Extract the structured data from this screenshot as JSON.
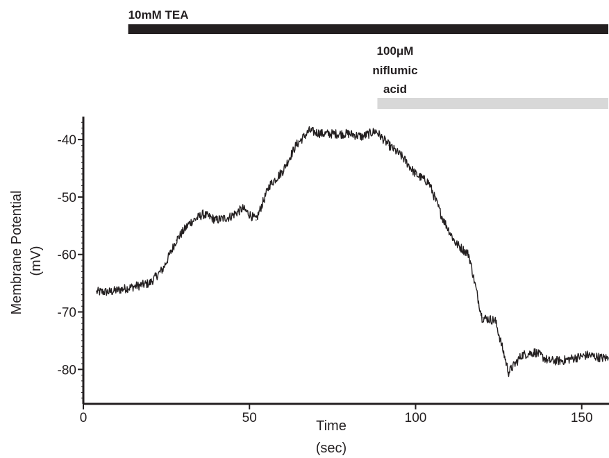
{
  "chart_data": {
    "type": "line",
    "title": "",
    "xlabel": "Time",
    "xlabel_unit": "(sec)",
    "ylabel": "Membrane Potential",
    "ylabel_unit": "(mV)",
    "xlim": [
      0,
      158
    ],
    "ylim": [
      -86,
      -36
    ],
    "x_ticks": [
      0,
      50,
      100,
      150
    ],
    "y_ticks": [
      -40,
      -50,
      -60,
      -70,
      -80
    ],
    "grid": false,
    "series": [
      {
        "color": "#231f20",
        "x": [
          4,
          8,
          12,
          16,
          20,
          24,
          28,
          32,
          36,
          40,
          44,
          48,
          52,
          56,
          60,
          64,
          68,
          72,
          76,
          80,
          84,
          88,
          92,
          96,
          100,
          104,
          108,
          112,
          116,
          120,
          124,
          128,
          132,
          136,
          140,
          144,
          148,
          152,
          156,
          158
        ],
        "y": [
          -66.5,
          -66.5,
          -66,
          -65.5,
          -65,
          -62.5,
          -57.5,
          -54.5,
          -53,
          -54,
          -53.5,
          -52,
          -54,
          -48,
          -45.5,
          -41,
          -38.5,
          -39,
          -39,
          -39,
          -39.5,
          -38.5,
          -41,
          -43,
          -46,
          -47.5,
          -53.5,
          -58,
          -60,
          -71,
          -71.5,
          -80.5,
          -77.5,
          -77,
          -78.5,
          -78.5,
          -78,
          -77.5,
          -78,
          -78
        ]
      }
    ]
  },
  "treatments": [
    {
      "label": "10mM TEA",
      "start": 13.5,
      "end": 158,
      "color": "#231f20"
    },
    {
      "label_lines": [
        "100μM",
        "niflumic",
        "acid"
      ],
      "start": 88.5,
      "end": 158,
      "color": "#d8d8d8"
    }
  ]
}
